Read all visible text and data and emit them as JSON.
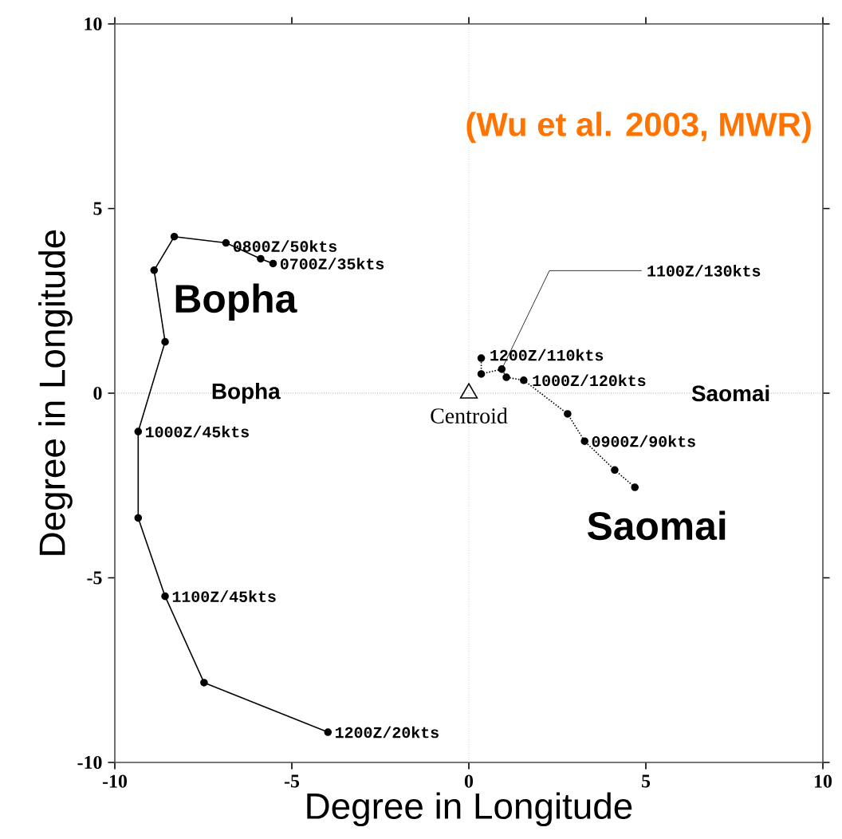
{
  "chart_data": {
    "type": "line",
    "xlabel": "Degree in Longitude",
    "ylabel": "Degree in Longitude",
    "xlim": [
      -10,
      10
    ],
    "ylim": [
      -10,
      10
    ],
    "xticks": [
      -10,
      -5,
      0,
      5,
      10
    ],
    "yticks": [
      -10,
      -5,
      0,
      5,
      10
    ],
    "marker": "circle",
    "series": [
      {
        "name": "Bopha",
        "color": "#000000",
        "line_style": "solid",
        "x": [
          -5.53,
          -5.88,
          -6.86,
          -8.32,
          -8.89,
          -8.58,
          -9.34,
          -9.34,
          -8.58,
          -7.48,
          -3.98
        ],
        "values": [
          3.51,
          3.64,
          4.07,
          4.24,
          3.33,
          1.39,
          -1.04,
          -3.38,
          -5.5,
          -7.84,
          -9.18
        ]
      },
      {
        "name": "Saomai",
        "color": "#000000",
        "line_style": "dotted",
        "x": [
          4.69,
          4.12,
          3.27,
          2.79,
          1.55,
          1.06,
          0.93,
          0.35,
          0.35
        ],
        "values": [
          -2.55,
          -2.08,
          -1.3,
          -0.56,
          0.35,
          0.43,
          0.65,
          0.52,
          0.95
        ]
      },
      {
        "name": "Centroid",
        "type": "scatter",
        "marker": "triangle",
        "color": "#000000",
        "x": [
          0
        ],
        "values": [
          0
        ]
      }
    ],
    "ref_lines": [
      {
        "axis": "x",
        "value": 0,
        "line_style": "dotted",
        "color": "#bbbbbb"
      },
      {
        "axis": "y",
        "value": 0,
        "line_style": "dotted",
        "color": "#777777"
      }
    ],
    "annotations": [
      "(Wu et al. 2003, MWR)",
      {
        "text": "0800Z/50kts",
        "x": -6.86,
        "y": 4.07
      },
      {
        "text": "0700Z/35kts",
        "x": -5.53,
        "y": 3.51
      },
      {
        "text": "1000Z/45kts",
        "x": -9.34,
        "y": -1.04
      },
      {
        "text": "1100Z/45kts",
        "x": -8.58,
        "y": -5.5
      },
      {
        "text": "1200Z/20kts",
        "x": -3.98,
        "y": -9.18
      },
      {
        "text": "1100Z/130kts",
        "x": 0.93,
        "y": 0.65
      },
      {
        "text": "1200Z/110kts",
        "x": 0.35,
        "y": 0.95
      },
      {
        "text": "1000Z/120kts",
        "x": 1.55,
        "y": 0.35
      },
      {
        "text": "0900Z/90kts",
        "x": 3.27,
        "y": -1.3
      },
      {
        "text": "Bopha",
        "x": -6.3,
        "y": 0
      },
      {
        "text": "Saomai",
        "x": 7.4,
        "y": 0
      }
    ]
  }
}
